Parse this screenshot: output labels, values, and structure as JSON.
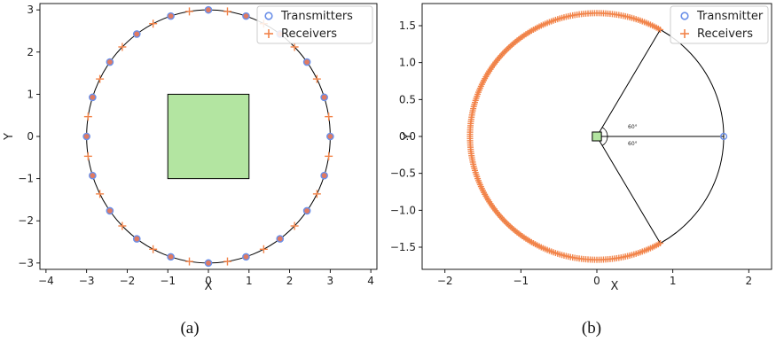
{
  "chart_data": [
    {
      "type": "scatter",
      "caption": "(a)",
      "xlabel": "X",
      "ylabel": "Y",
      "xlim": [
        -4.15,
        4.15
      ],
      "ylim": [
        -3.15,
        3.15
      ],
      "xticks": [
        "−4",
        "−3",
        "−2",
        "−1",
        "0",
        "1",
        "2",
        "3",
        "4"
      ],
      "yticks": [
        "−3",
        "−2",
        "−1",
        "0",
        "1",
        "2",
        "3"
      ],
      "xtick_values": [
        -4,
        -3,
        -2,
        -1,
        0,
        1,
        2,
        3,
        4
      ],
      "ytick_values": [
        -3,
        -2,
        -1,
        0,
        1,
        2,
        3
      ],
      "circle_radius": 3,
      "object_square": {
        "x": [
          -1,
          1
        ],
        "y": [
          -1,
          1
        ],
        "fill": "#b3e5a1"
      },
      "series": [
        {
          "name": "Transmitters",
          "marker": "circle",
          "color": "#6a8fe8",
          "fill": "#e07a62",
          "count": 20,
          "radius": 3,
          "angle_offset_deg": 0
        },
        {
          "name": "Receivers",
          "marker": "plus",
          "color": "#f2844a",
          "count": 20,
          "radius": 3,
          "angle_offset_deg": 9
        }
      ],
      "legend": {
        "position": "top-right",
        "entries": [
          "Transmitters",
          "Receivers"
        ]
      }
    },
    {
      "type": "scatter",
      "caption": "(b)",
      "xlabel": "X",
      "ylabel": "Y",
      "xlim": [
        -2.3,
        2.3
      ],
      "ylim": [
        -1.8,
        1.8
      ],
      "xticks": [
        "−2",
        "−1",
        "0",
        "1",
        "2"
      ],
      "yticks": [
        "−1.5",
        "−1.0",
        "−0.5",
        "0.0",
        "0.5",
        "1.0",
        "1.5"
      ],
      "xtick_values": [
        -2,
        -1,
        0,
        1,
        2
      ],
      "ytick_values": [
        -1.5,
        -1.0,
        -0.5,
        0.0,
        0.5,
        1.0,
        1.5
      ],
      "circle_radius": 1.67,
      "object_square": {
        "x": [
          -0.06,
          0.06
        ],
        "y": [
          -0.06,
          0.06
        ],
        "fill": "#b3e5a1"
      },
      "series": [
        {
          "name": "Transmitter",
          "marker": "circle",
          "color": "#6a8fe8",
          "x": [
            1.67
          ],
          "y": [
            0
          ]
        },
        {
          "name": "Receivers",
          "marker": "plus",
          "color": "#f2844a",
          "radius": 1.67,
          "arc_start_deg": 60,
          "arc_end_deg": 300,
          "count": 240
        }
      ],
      "angle_annotations": [
        "60°",
        "60°"
      ],
      "legend": {
        "position": "top-right",
        "entries": [
          "Transmitter",
          "Receivers"
        ]
      }
    }
  ]
}
